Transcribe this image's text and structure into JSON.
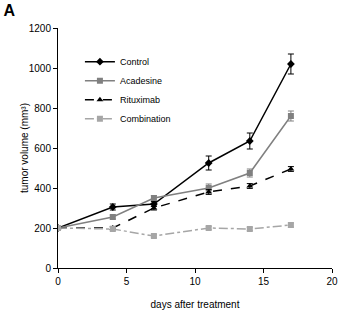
{
  "chart_data": {
    "type": "line",
    "title": "A",
    "x_label": "days after treatment",
    "y_label": "tumor volume (mm³)",
    "xlim": [
      0,
      20
    ],
    "xticks": [
      0,
      5,
      10,
      15,
      20
    ],
    "ylim": [
      0,
      1200
    ],
    "yticks": [
      0,
      200,
      400,
      600,
      800,
      1000,
      1200
    ],
    "grid": false,
    "legend": "upper left",
    "series": [
      {
        "name": "Control",
        "color": "#000000",
        "marker": "diamond",
        "line_style": "solid",
        "x": [
          0,
          4,
          7,
          11,
          14,
          17
        ],
        "values": [
          200,
          305,
          320,
          525,
          635,
          1020
        ],
        "errors": [
          8,
          15,
          12,
          35,
          40,
          50
        ]
      },
      {
        "name": "Acadesine",
        "color": "#808080",
        "marker": "square",
        "line_style": "solid",
        "x": [
          0,
          4,
          7,
          11,
          14,
          17
        ],
        "values": [
          200,
          255,
          350,
          400,
          475,
          760
        ],
        "errors": [
          8,
          10,
          12,
          20,
          20,
          25
        ]
      },
      {
        "name": "Rituximab",
        "color": "#000000",
        "marker": "triangle-up",
        "line_style": "dash",
        "x": [
          0,
          4,
          7,
          11,
          14,
          17
        ],
        "values": [
          200,
          200,
          300,
          380,
          410,
          495
        ],
        "errors": [
          8,
          8,
          10,
          12,
          12,
          12
        ]
      },
      {
        "name": "Combination",
        "color": "#a6a6a6",
        "marker": "square",
        "line_style": "dashdot",
        "x": [
          0,
          4,
          7,
          11,
          14,
          17
        ],
        "values": [
          200,
          195,
          160,
          200,
          195,
          215
        ],
        "errors": [
          8,
          8,
          8,
          8,
          8,
          10
        ]
      }
    ]
  }
}
